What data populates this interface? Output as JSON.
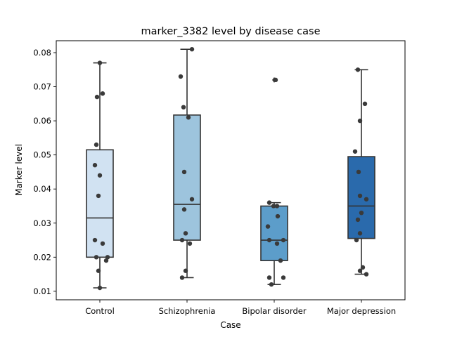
{
  "chart_data": {
    "type": "box",
    "title": "marker_3382 level by disease case",
    "xlabel": "Case",
    "ylabel": "Marker level",
    "ylim": [
      0.0075,
      0.0835
    ],
    "yticks": [
      0.01,
      0.02,
      0.03,
      0.04,
      0.05,
      0.06,
      0.07,
      0.08
    ],
    "ytick_labels": [
      "0.01",
      "0.02",
      "0.03",
      "0.04",
      "0.05",
      "0.06",
      "0.07",
      "0.08"
    ],
    "categories": [
      "Control",
      "Schizophrenia",
      "Bipolar disorder",
      "Major depression"
    ],
    "colors": [
      "#d1e2f2",
      "#9dc4dd",
      "#5c9dca",
      "#2a6aac"
    ],
    "boxes": [
      {
        "q1": 0.02,
        "median": 0.0315,
        "q3": 0.0515,
        "whislo": 0.011,
        "whishi": 0.077,
        "outliers": []
      },
      {
        "q1": 0.025,
        "median": 0.0355,
        "q3": 0.0617,
        "whislo": 0.014,
        "whishi": 0.081,
        "outliers": []
      },
      {
        "q1": 0.019,
        "median": 0.025,
        "q3": 0.035,
        "whislo": 0.012,
        "whishi": 0.036,
        "outliers": [
          0.072
        ]
      },
      {
        "q1": 0.0255,
        "median": 0.035,
        "q3": 0.0495,
        "whislo": 0.015,
        "whishi": 0.075,
        "outliers": []
      }
    ],
    "points": [
      [
        0.077,
        0.068,
        0.067,
        0.053,
        0.047,
        0.044,
        0.038,
        0.025,
        0.024,
        0.02,
        0.02,
        0.019,
        0.016,
        0.011
      ],
      [
        0.081,
        0.073,
        0.064,
        0.061,
        0.045,
        0.037,
        0.034,
        0.027,
        0.025,
        0.024,
        0.016,
        0.014
      ],
      [
        0.072,
        0.036,
        0.035,
        0.035,
        0.032,
        0.029,
        0.025,
        0.025,
        0.024,
        0.019,
        0.014,
        0.014,
        0.012
      ],
      [
        0.075,
        0.065,
        0.06,
        0.051,
        0.045,
        0.038,
        0.037,
        0.033,
        0.031,
        0.027,
        0.025,
        0.017,
        0.016,
        0.015
      ]
    ]
  }
}
